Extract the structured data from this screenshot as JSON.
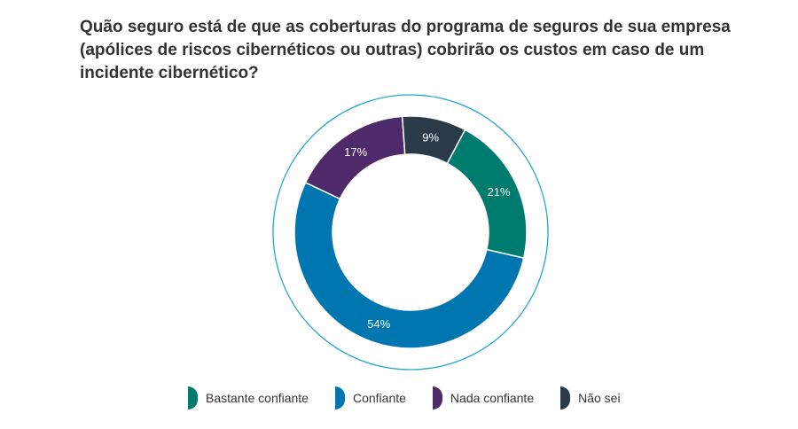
{
  "chart_data": {
    "type": "pie",
    "title": "Quão seguro está de que as coberturas do programa de seguros de sua empresa (apólices de riscos cibernéticos ou outras) cobrirão os custos em caso de um incidente cibernético?",
    "categories": [
      "Bastante confiante",
      "Confiante",
      "Nada confiante",
      "Não sei"
    ],
    "values": [
      21,
      54,
      17,
      9
    ],
    "labels": [
      "21%",
      "54%",
      "17%",
      "9%"
    ],
    "colors": [
      "#007c6f",
      "#0076b1",
      "#4e2a6b",
      "#2b3a49"
    ],
    "label_colors": [
      "#ffffff",
      "#ffffff",
      "#ffffff",
      "#ffffff"
    ],
    "legend_placement": "bottom",
    "style": "donut",
    "outer_ring_color": "#22a9c9"
  }
}
